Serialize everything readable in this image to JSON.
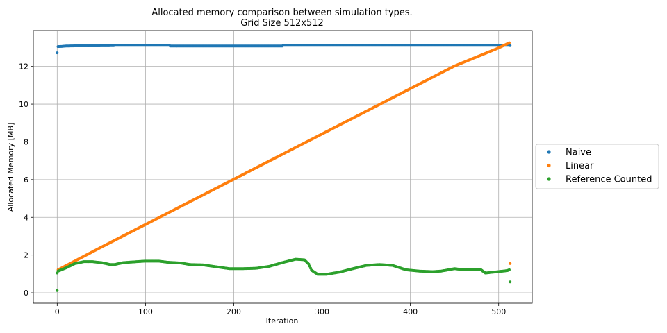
{
  "chart_data": {
    "type": "scatter",
    "title": "Allocated memory comparison between simulation types.",
    "subtitle": "Grid Size 512x512",
    "xlabel": "Iteration",
    "ylabel": "Allocated Memory [MB]",
    "xlim": [
      -27,
      538
    ],
    "ylim": [
      -0.55,
      13.9
    ],
    "xticks": [
      0,
      100,
      200,
      300,
      400,
      500
    ],
    "yticks": [
      0,
      2,
      4,
      6,
      8,
      10,
      12
    ],
    "grid": true,
    "legend": "outside-right",
    "series": [
      {
        "name": "Naive",
        "color": "#1f77b4",
        "points": [
          [
            0,
            12.72
          ],
          [
            1,
            13.05
          ],
          [
            5,
            13.06
          ],
          [
            10,
            13.08
          ],
          [
            20,
            13.09
          ],
          [
            40,
            13.09
          ],
          [
            64,
            13.1
          ],
          [
            65,
            13.12
          ],
          [
            100,
            13.12
          ],
          [
            127,
            13.12
          ],
          [
            128,
            13.08
          ],
          [
            160,
            13.08
          ],
          [
            200,
            13.08
          ],
          [
            240,
            13.08
          ],
          [
            255,
            13.08
          ],
          [
            256,
            13.12
          ],
          [
            300,
            13.12
          ],
          [
            350,
            13.12
          ],
          [
            400,
            13.12
          ],
          [
            450,
            13.12
          ],
          [
            500,
            13.12
          ],
          [
            510,
            13.12
          ],
          [
            512,
            13.12
          ],
          [
            513,
            13.1
          ]
        ]
      },
      {
        "name": "Linear",
        "color": "#ff7f0e",
        "points": [
          [
            1,
            1.22
          ],
          [
            50,
            2.42
          ],
          [
            100,
            3.62
          ],
          [
            150,
            4.82
          ],
          [
            200,
            6.02
          ],
          [
            250,
            7.22
          ],
          [
            300,
            8.42
          ],
          [
            350,
            9.62
          ],
          [
            400,
            10.82
          ],
          [
            450,
            12.02
          ],
          [
            500,
            12.98
          ],
          [
            512,
            13.25
          ],
          [
            513,
            1.55
          ]
        ]
      },
      {
        "name": "Reference Counted",
        "color": "#2ca02c",
        "points": [
          [
            0,
            0.12
          ],
          [
            0,
            1.05
          ],
          [
            1,
            1.15
          ],
          [
            10,
            1.32
          ],
          [
            20,
            1.55
          ],
          [
            30,
            1.65
          ],
          [
            40,
            1.65
          ],
          [
            50,
            1.6
          ],
          [
            60,
            1.5
          ],
          [
            65,
            1.5
          ],
          [
            75,
            1.6
          ],
          [
            90,
            1.65
          ],
          [
            100,
            1.68
          ],
          [
            115,
            1.68
          ],
          [
            125,
            1.62
          ],
          [
            140,
            1.58
          ],
          [
            150,
            1.5
          ],
          [
            165,
            1.48
          ],
          [
            180,
            1.38
          ],
          [
            195,
            1.28
          ],
          [
            210,
            1.28
          ],
          [
            225,
            1.3
          ],
          [
            240,
            1.4
          ],
          [
            255,
            1.6
          ],
          [
            270,
            1.78
          ],
          [
            280,
            1.75
          ],
          [
            285,
            1.52
          ],
          [
            288,
            1.2
          ],
          [
            295,
            0.98
          ],
          [
            305,
            0.98
          ],
          [
            320,
            1.1
          ],
          [
            335,
            1.28
          ],
          [
            350,
            1.45
          ],
          [
            365,
            1.5
          ],
          [
            380,
            1.45
          ],
          [
            395,
            1.22
          ],
          [
            410,
            1.15
          ],
          [
            425,
            1.12
          ],
          [
            435,
            1.15
          ],
          [
            450,
            1.28
          ],
          [
            460,
            1.22
          ],
          [
            470,
            1.22
          ],
          [
            480,
            1.22
          ],
          [
            485,
            1.05
          ],
          [
            495,
            1.1
          ],
          [
            505,
            1.15
          ],
          [
            510,
            1.18
          ],
          [
            512,
            1.22
          ],
          [
            513,
            0.58
          ]
        ]
      }
    ]
  }
}
